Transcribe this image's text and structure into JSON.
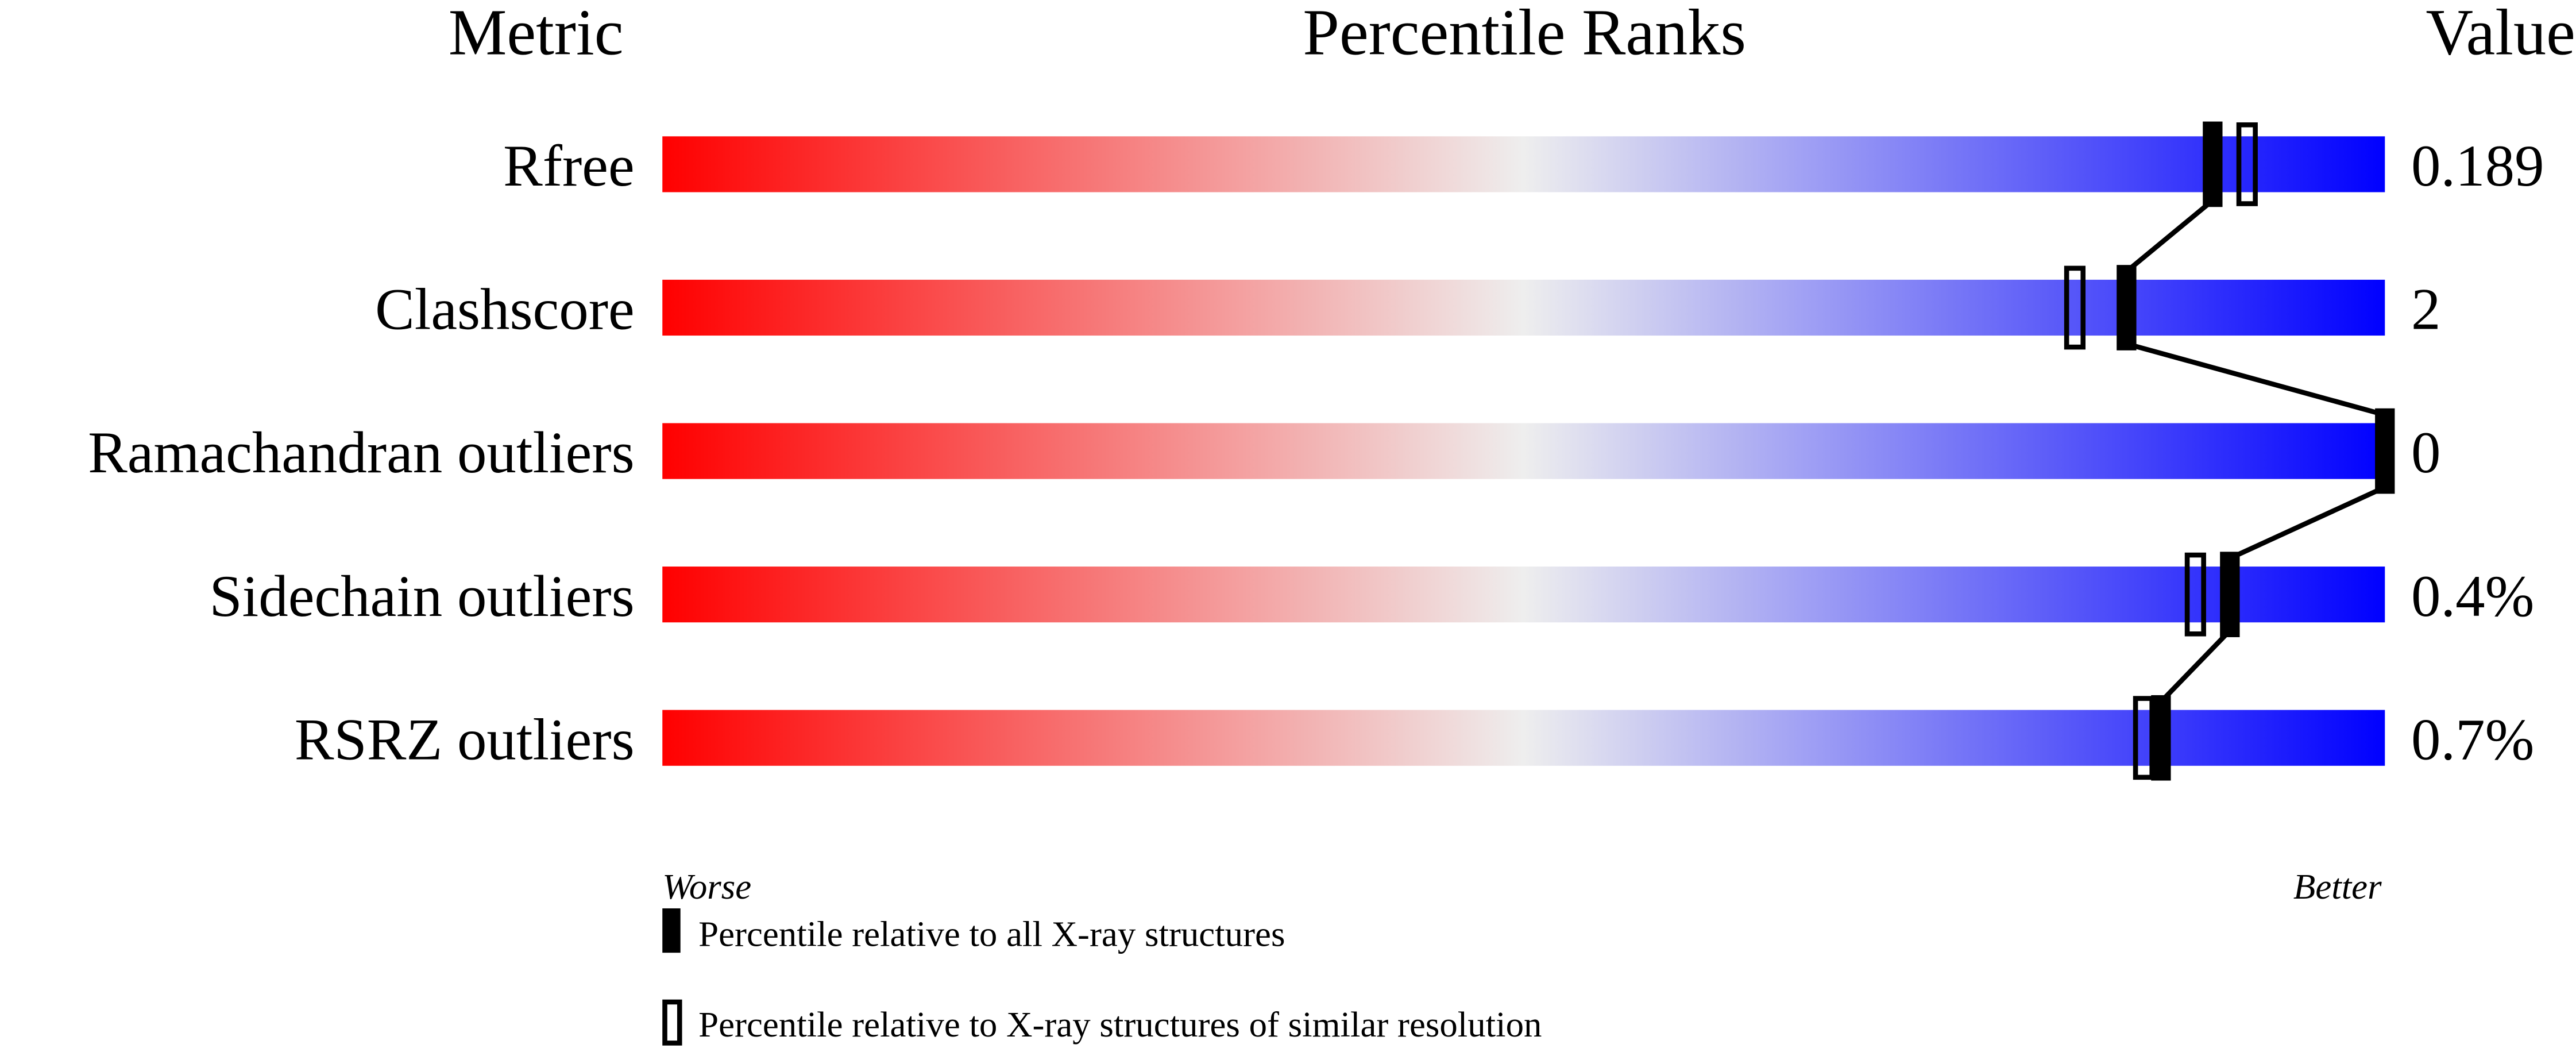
{
  "chart_data": {
    "type": "percentile-bar",
    "headers": {
      "metric": "Metric",
      "title": "Percentile Ranks",
      "value": "Value"
    },
    "xlim": [
      0,
      100
    ],
    "scale_labels": {
      "low": "Worse",
      "high": "Better"
    },
    "gradient_colors": {
      "worse": "#ff0000",
      "middle": "#eeeeee",
      "better": "#0000ff"
    },
    "rows": [
      {
        "metric": "Rfree",
        "value": "0.189",
        "percentile_all": 90,
        "percentile_similar": 92
      },
      {
        "metric": "Clashscore",
        "value": "2",
        "percentile_all": 85,
        "percentile_similar": 82
      },
      {
        "metric": "Ramachandran outliers",
        "value": "0",
        "percentile_all": 100,
        "percentile_similar": null
      },
      {
        "metric": "Sidechain outliers",
        "value": "0.4%",
        "percentile_all": 91,
        "percentile_similar": 89
      },
      {
        "metric": "RSRZ outliers",
        "value": "0.7%",
        "percentile_all": 87,
        "percentile_similar": 86
      }
    ],
    "legend": [
      {
        "marker": "filled",
        "label": "Percentile relative to all X-ray structures"
      },
      {
        "marker": "open",
        "label": "Percentile relative to X-ray structures of similar resolution"
      }
    ]
  }
}
